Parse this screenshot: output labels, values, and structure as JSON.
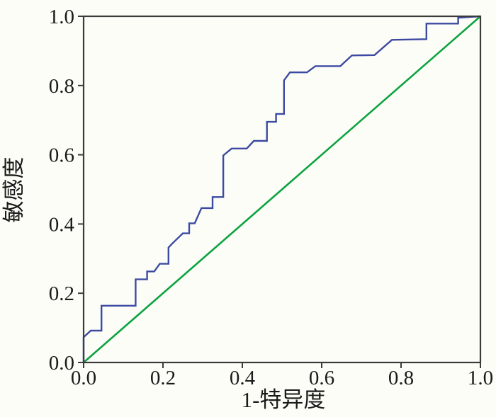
{
  "figure": {
    "background_color": "#fdfdf8",
    "axis_color": "#3b3b3b",
    "text_color": "#1a1a1a",
    "x_axis": {
      "label": "1-特异度",
      "ticks": [
        "0.0",
        "0.2",
        "0.4",
        "0.6",
        "0.8",
        "1.0"
      ],
      "range": [
        0,
        1
      ]
    },
    "y_axis": {
      "label": "敏感度",
      "ticks": [
        "0.0",
        "0.2",
        "0.4",
        "0.6",
        "0.8",
        "1.0"
      ],
      "range": [
        0,
        1
      ]
    }
  },
  "chart_data": {
    "type": "line",
    "title": "",
    "xlabel": "1-特异度",
    "ylabel": "敏感度",
    "xlim": [
      0,
      1
    ],
    "ylim": [
      0,
      1
    ],
    "grid": false,
    "legend_position": "none",
    "series": [
      {
        "name": "ROC curve",
        "color": "#3c4ba1",
        "line_width": 2.4,
        "points": [
          [
            0.0,
            0.0
          ],
          [
            0.0,
            0.073
          ],
          [
            0.018,
            0.092
          ],
          [
            0.045,
            0.092
          ],
          [
            0.045,
            0.164
          ],
          [
            0.131,
            0.164
          ],
          [
            0.131,
            0.24
          ],
          [
            0.16,
            0.24
          ],
          [
            0.16,
            0.263
          ],
          [
            0.178,
            0.263
          ],
          [
            0.192,
            0.285
          ],
          [
            0.214,
            0.285
          ],
          [
            0.214,
            0.332
          ],
          [
            0.222,
            0.342
          ],
          [
            0.25,
            0.373
          ],
          [
            0.266,
            0.373
          ],
          [
            0.266,
            0.402
          ],
          [
            0.28,
            0.402
          ],
          [
            0.297,
            0.446
          ],
          [
            0.325,
            0.446
          ],
          [
            0.325,
            0.478
          ],
          [
            0.352,
            0.478
          ],
          [
            0.352,
            0.598
          ],
          [
            0.373,
            0.618
          ],
          [
            0.411,
            0.618
          ],
          [
            0.429,
            0.64
          ],
          [
            0.462,
            0.64
          ],
          [
            0.462,
            0.695
          ],
          [
            0.485,
            0.695
          ],
          [
            0.485,
            0.718
          ],
          [
            0.505,
            0.718
          ],
          [
            0.505,
            0.815
          ],
          [
            0.52,
            0.838
          ],
          [
            0.563,
            0.838
          ],
          [
            0.584,
            0.856
          ],
          [
            0.647,
            0.856
          ],
          [
            0.676,
            0.887
          ],
          [
            0.733,
            0.888
          ],
          [
            0.777,
            0.932
          ],
          [
            0.864,
            0.934
          ],
          [
            0.864,
            0.979
          ],
          [
            0.944,
            0.979
          ],
          [
            0.944,
            0.996
          ],
          [
            1.0,
            1.0
          ]
        ]
      },
      {
        "name": "Reference diagonal",
        "color": "#0ca341",
        "line_width": 2.6,
        "points": [
          [
            0,
            0
          ],
          [
            1,
            1
          ]
        ]
      }
    ]
  }
}
